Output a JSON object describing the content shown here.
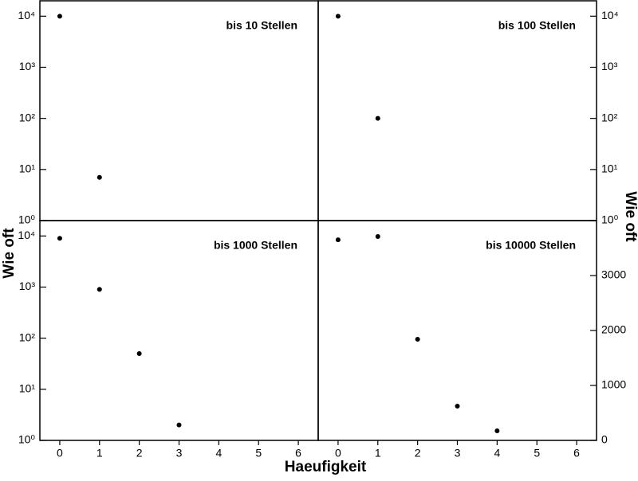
{
  "chart_data": [
    {
      "type": "scatter",
      "title": "bis 10 Stellen",
      "ylabel": "Wie oft",
      "x": [
        0,
        1
      ],
      "values": [
        10000,
        7
      ],
      "color": "#000000",
      "xlim": [
        -0.5,
        6.5
      ],
      "ylim": [
        1,
        20000
      ],
      "yscale": "log",
      "yaxis_side": "left",
      "yticks": [
        {
          "value": 1,
          "label": "10⁰"
        },
        {
          "value": 10,
          "label": "10¹"
        },
        {
          "value": 100,
          "label": "10²"
        },
        {
          "value": 1000,
          "label": "10³"
        },
        {
          "value": 10000,
          "label": "10⁴"
        }
      ]
    },
    {
      "type": "scatter",
      "title": "bis 100 Stellen",
      "x": [
        0,
        1
      ],
      "values": [
        10000,
        100
      ],
      "color": "#000000",
      "xlim": [
        -0.5,
        6.5
      ],
      "ylim": [
        1,
        20000
      ],
      "yscale": "log",
      "yaxis_side": "right",
      "yticks": [
        {
          "value": 1,
          "label": "10⁰"
        },
        {
          "value": 10,
          "label": "10¹"
        },
        {
          "value": 100,
          "label": "10²"
        },
        {
          "value": 1000,
          "label": "10³"
        },
        {
          "value": 10000,
          "label": "10⁴"
        }
      ]
    },
    {
      "type": "scatter",
      "title": "bis 1000 Stellen",
      "xlabel": "Haeufigkeit",
      "x": [
        0,
        1,
        2,
        3
      ],
      "values": [
        9000,
        900,
        50,
        2
      ],
      "color": "#000000",
      "xlim": [
        -0.5,
        6.5
      ],
      "xticks": [
        0,
        1,
        2,
        3,
        4,
        5,
        6
      ],
      "ylim": [
        1,
        20000
      ],
      "yscale": "log",
      "yaxis_side": "left",
      "yticks": [
        {
          "value": 1,
          "label": "10⁰"
        },
        {
          "value": 10,
          "label": "10¹"
        },
        {
          "value": 100,
          "label": "10²"
        },
        {
          "value": 1000,
          "label": "10³"
        },
        {
          "value": 10000,
          "label": "10⁴"
        }
      ]
    },
    {
      "type": "scatter",
      "title": "bis 10000 Stellen",
      "ylabel": "Wie oft",
      "x": [
        0,
        1,
        2,
        3,
        4
      ],
      "values": [
        3650,
        3710,
        1840,
        623,
        174
      ],
      "color": "#000000",
      "xlim": [
        -0.5,
        6.5
      ],
      "xticks": [
        0,
        1,
        2,
        3,
        4,
        5,
        6
      ],
      "ylim": [
        0,
        4000
      ],
      "yscale": "linear",
      "yaxis_side": "right",
      "yticks": [
        0,
        1000,
        2000,
        3000
      ]
    }
  ]
}
